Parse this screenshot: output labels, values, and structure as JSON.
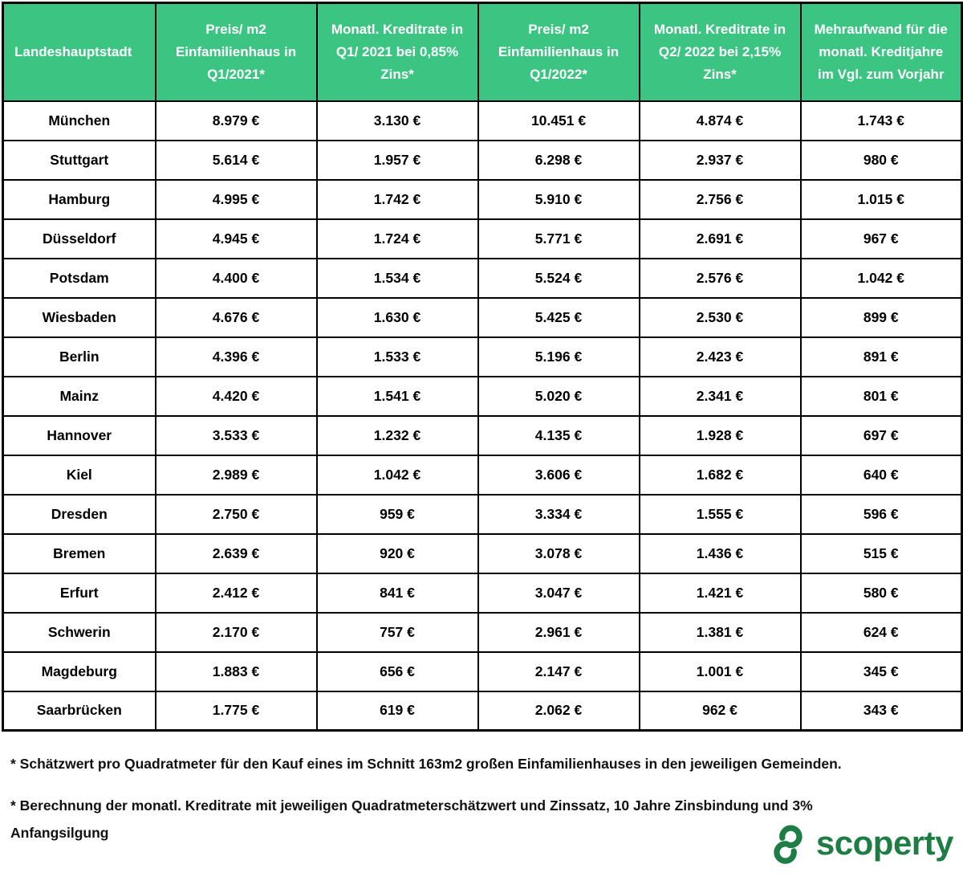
{
  "colors": {
    "header_bg": "#3cc483",
    "header_text": "#ffffff",
    "border": "#000000",
    "logo_green": "#1e7c45"
  },
  "chart_data": {
    "type": "table",
    "columns": [
      "Landeshauptstadt",
      "Preis/ m2 Einfamilienhaus in Q1/2021*",
      "Monatl. Kreditrate in Q1/ 2021 bei 0,85% Zins*",
      "Preis/ m2 Einfamilienhaus in Q1/2022*",
      "Monatl. Kreditrate in Q2/ 2022 bei 2,15% Zins*",
      "Mehraufwand für die monatl. Kreditjahre im Vgl. zum Vorjahr"
    ],
    "rows": [
      {
        "city": "München",
        "values": [
          "8.979 €",
          "3.130 €",
          "10.451 €",
          "4.874 €",
          "1.743 €"
        ]
      },
      {
        "city": "Stuttgart",
        "values": [
          "5.614 €",
          "1.957 €",
          "6.298 €",
          "2.937 €",
          "980 €"
        ]
      },
      {
        "city": "Hamburg",
        "values": [
          "4.995 €",
          "1.742 €",
          "5.910 €",
          "2.756 €",
          "1.015 €"
        ]
      },
      {
        "city": "Düsseldorf",
        "values": [
          "4.945 €",
          "1.724 €",
          "5.771 €",
          "2.691 €",
          "967 €"
        ]
      },
      {
        "city": "Potsdam",
        "values": [
          "4.400 €",
          "1.534 €",
          "5.524 €",
          "2.576 €",
          "1.042 €"
        ]
      },
      {
        "city": "Wiesbaden",
        "values": [
          "4.676 €",
          "1.630 €",
          "5.425 €",
          "2.530 €",
          "899 €"
        ]
      },
      {
        "city": "Berlin",
        "values": [
          "4.396 €",
          "1.533 €",
          "5.196 €",
          "2.423 €",
          "891 €"
        ]
      },
      {
        "city": "Mainz",
        "values": [
          "4.420 €",
          "1.541 €",
          "5.020 €",
          "2.341 €",
          "801 €"
        ]
      },
      {
        "city": "Hannover",
        "values": [
          "3.533 €",
          "1.232 €",
          "4.135 €",
          "1.928 €",
          "697 €"
        ]
      },
      {
        "city": "Kiel",
        "values": [
          "2.989 €",
          "1.042 €",
          "3.606 €",
          "1.682 €",
          "640 €"
        ]
      },
      {
        "city": "Dresden",
        "values": [
          "2.750 €",
          "959 €",
          "3.334 €",
          "1.555 €",
          "596 €"
        ]
      },
      {
        "city": "Bremen",
        "values": [
          "2.639 €",
          "920 €",
          "3.078 €",
          "1.436 €",
          "515 €"
        ]
      },
      {
        "city": "Erfurt",
        "values": [
          "2.412 €",
          "841 €",
          "3.047 €",
          "1.421 €",
          "580 €"
        ]
      },
      {
        "city": "Schwerin",
        "values": [
          "2.170 €",
          "757 €",
          "2.961 €",
          "1.381 €",
          "624 €"
        ]
      },
      {
        "city": "Magdeburg",
        "values": [
          "1.883 €",
          "656 €",
          "2.147 €",
          "1.001 €",
          "345 €"
        ]
      },
      {
        "city": "Saarbrücken",
        "values": [
          "1.775 €",
          "619 €",
          "2.062 €",
          "962 €",
          "343 €"
        ]
      }
    ]
  },
  "footnotes": [
    "* Schätzwert pro Quadratmeter für den Kauf eines im Schnitt 163m2 großen Einfamilienhauses in den jeweiligen Gemeinden.",
    "* Berechnung der monatl. Kreditrate mit jeweiligen Quadratmeterschätzwert und Zinssatz, 10 Jahre Zinsbindung und 3% Anfangsilgung"
  ],
  "logo": {
    "brand": "scoperty"
  }
}
